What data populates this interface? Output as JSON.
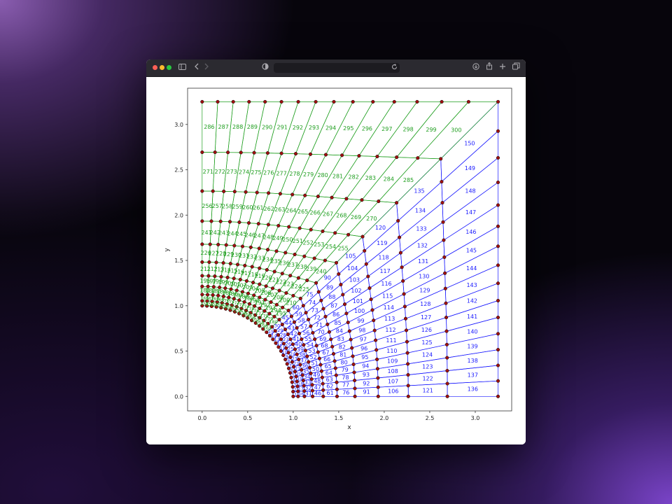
{
  "browser": {
    "address_text": "",
    "icons": [
      "sidebar-icon",
      "back-icon",
      "forward-icon",
      "shield-icon",
      "reload-icon",
      "download-icon",
      "share-icon",
      "new-tab-icon",
      "tabs-overview-icon"
    ]
  },
  "figure": {
    "xlabel": "x",
    "ylabel": "y",
    "xticks": [
      "0.0",
      "0.5",
      "1.0",
      "1.5",
      "2.0",
      "2.5",
      "3.0"
    ],
    "yticks": [
      "0.0",
      "0.5",
      "1.0",
      "1.5",
      "2.0",
      "2.5",
      "3.0"
    ],
    "xlim": [
      -0.16,
      3.4
    ],
    "ylim": [
      -0.16,
      3.4
    ],
    "colors": {
      "outer_region": "#1a1aff",
      "inner_region": "#1e9e1e",
      "node_fill": "#a01010",
      "node_edge": "#000000"
    },
    "mesh": {
      "hole_radius": 1.0,
      "extent": 3.25,
      "radial_divisions": 10,
      "angular_divisions_per_half": 15,
      "outer_region_elements": "1-150",
      "inner_region_elements": "151-300"
    }
  }
}
